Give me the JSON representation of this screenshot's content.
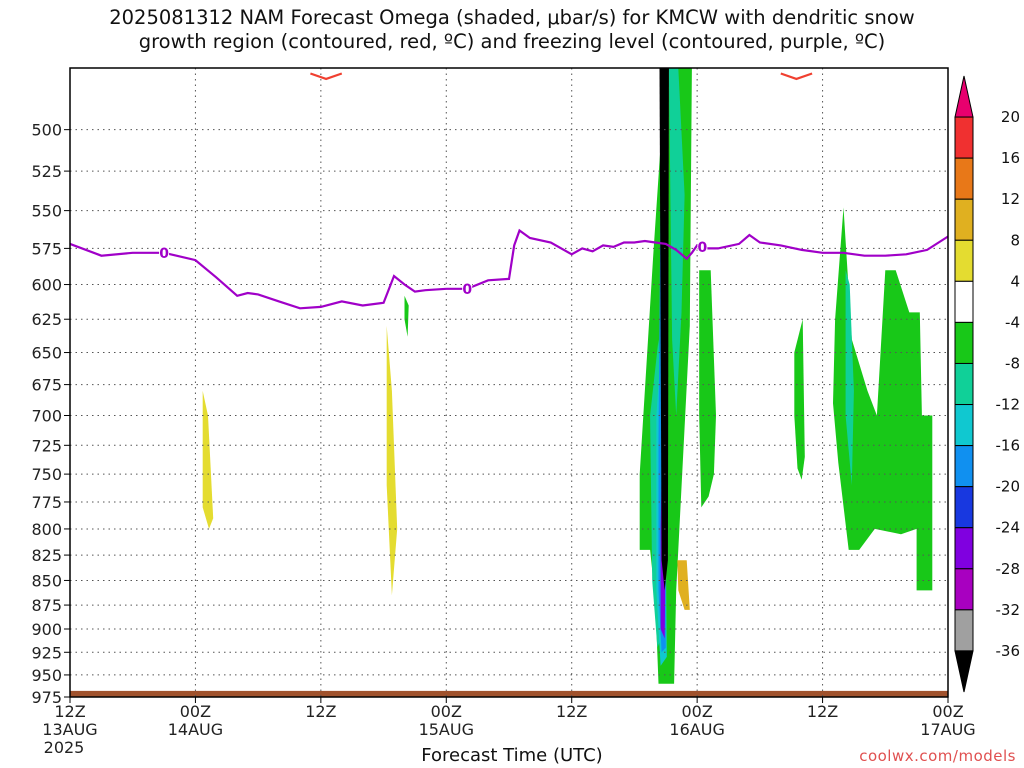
{
  "title": {
    "line1": "2025081312 NAM Forecast Omega (shaded, μbar/s) for KMCW with dendritic snow",
    "line2": "growth region (contoured, red, ºC) and freezing level (contoured, purple, ºC)"
  },
  "xlabel": "Forecast Time (UTC)",
  "credit": "coolwx.com/models",
  "chart_data": {
    "type": "area",
    "title": "2025081312 NAM Forecast Omega (shaded, μbar/s) for KMCW with dendritic snow growth region (contoured, red, ºC) and freezing level (contoured, purple, ºC)",
    "xlabel": "Forecast Time (UTC)",
    "ylabel": "",
    "xlim": [
      0,
      84
    ],
    "ylim": [
      975,
      465
    ],
    "y_scale": "log-pressure",
    "grid": true,
    "x_ticks": [
      {
        "hour": 0,
        "l1": "12Z",
        "l2": "13AUG",
        "l3": "2025"
      },
      {
        "hour": 12,
        "l1": "00Z",
        "l2": "14AUG",
        "l3": ""
      },
      {
        "hour": 24,
        "l1": "12Z",
        "l2": "",
        "l3": ""
      },
      {
        "hour": 36,
        "l1": "00Z",
        "l2": "15AUG",
        "l3": ""
      },
      {
        "hour": 48,
        "l1": "12Z",
        "l2": "",
        "l3": ""
      },
      {
        "hour": 60,
        "l1": "00Z",
        "l2": "16AUG",
        "l3": ""
      },
      {
        "hour": 72,
        "l1": "12Z",
        "l2": "",
        "l3": ""
      },
      {
        "hour": 84,
        "l1": "00Z",
        "l2": "17AUG",
        "l3": ""
      }
    ],
    "y_ticks": [
      500,
      525,
      550,
      575,
      600,
      625,
      650,
      675,
      700,
      725,
      750,
      775,
      800,
      825,
      850,
      875,
      900,
      925,
      950,
      975
    ],
    "freezing_level": {
      "name": "freezing level (0 ºC)",
      "label": "0",
      "label_hours": [
        9,
        38,
        60.5
      ],
      "color": "#a000c8",
      "x": [
        0,
        3,
        6,
        9,
        12,
        14,
        16,
        17,
        18,
        20,
        22,
        24,
        26,
        28,
        30,
        31,
        32,
        33,
        34,
        36,
        38,
        40,
        42,
        42.5,
        43,
        44,
        46,
        48,
        49,
        50,
        51,
        52,
        53,
        54,
        55,
        56,
        57,
        58,
        59,
        59.5,
        60,
        61,
        62,
        64,
        65,
        66,
        68,
        70,
        72,
        74,
        76,
        78,
        80,
        82,
        84
      ],
      "y": [
        572,
        580,
        578,
        578,
        583,
        595,
        608,
        606,
        607,
        612,
        617,
        616,
        612,
        615,
        613,
        594,
        600,
        605,
        604,
        603,
        603,
        597,
        596,
        573,
        563,
        568,
        571,
        579,
        575,
        577,
        573,
        574,
        571,
        571,
        570,
        571,
        572,
        576,
        582,
        578,
        573,
        575,
        575,
        572,
        566,
        571,
        573,
        576,
        578,
        578,
        580,
        580,
        579,
        576,
        567
      ]
    },
    "dendritic_growth_region": {
      "name": "dendritic snow growth region",
      "color": "#f04030",
      "segments": [
        {
          "x": [
            23,
            24.5,
            26
          ],
          "y": [
            468,
            471,
            468
          ]
        },
        {
          "x": [
            68,
            69.5,
            71
          ],
          "y": [
            468,
            471,
            468
          ]
        }
      ]
    },
    "omega_levels": [
      20,
      16,
      12,
      8,
      4,
      -4,
      -8,
      -12,
      -16,
      -20,
      -24,
      -28,
      -32,
      -36
    ],
    "omega_colors": [
      "#e8006e",
      "#f03030",
      "#e87818",
      "#e0b020",
      "#e4dc30",
      "#ffffff",
      "#18c818",
      "#10d098",
      "#10c8d0",
      "#1090f0",
      "#1838e0",
      "#8000e0",
      "#a800c0",
      "#a0a0a0",
      "#000000"
    ],
    "omega_regions": [
      {
        "level": 4,
        "color": "#e4dc30",
        "x": [
          12.7,
          13.2,
          13.7,
          13.3,
          12.7
        ],
        "y": [
          680,
          700,
          790,
          800,
          780
        ]
      },
      {
        "level": 4,
        "color": "#e4dc30",
        "x": [
          30.3,
          30.8,
          31.3,
          30.8,
          30.3
        ],
        "y": [
          630,
          680,
          800,
          865,
          760
        ]
      },
      {
        "level": -4,
        "color": "#18c818",
        "x": [
          32.0,
          32.4,
          32.3,
          32.0
        ],
        "y": [
          608,
          615,
          638,
          625
        ]
      },
      {
        "level": -4,
        "color": "#18c818",
        "x": [
          54.5,
          55.8,
          57.0,
          57.5,
          58.5,
          59.5,
          59.3,
          58.0,
          57.8,
          56.3,
          56.0,
          55.5,
          54.5
        ],
        "y": [
          750,
          580,
          465,
          465,
          465,
          465,
          630,
          860,
          960,
          960,
          870,
          820,
          820
        ]
      },
      {
        "level": -4,
        "color": "#18c818",
        "x": [
          60.2,
          61.3,
          61.8,
          61.6,
          61.1,
          60.4,
          60.2
        ],
        "y": [
          590,
          590,
          700,
          750,
          770,
          780,
          700
        ]
      },
      {
        "level": -4,
        "color": "#18c818",
        "x": [
          69.3,
          70.1,
          70.3,
          70.0,
          69.6,
          69.3
        ],
        "y": [
          650,
          625,
          735,
          755,
          745,
          700
        ]
      },
      {
        "level": -4,
        "color": "#18c818",
        "x": [
          73.2,
          74.0,
          74.8,
          76.3,
          77.2,
          78.0,
          79.0,
          80.3,
          81.3,
          81.5,
          82.5,
          82.5,
          81.0,
          81.0,
          79.5,
          77.0,
          75.5,
          74.5,
          73.5,
          73.0
        ],
        "y": [
          625,
          548,
          640,
          680,
          700,
          590,
          590,
          620,
          620,
          700,
          700,
          860,
          860,
          800,
          805,
          800,
          820,
          820,
          740,
          690
        ]
      },
      {
        "level": 8,
        "color": "#e0b020",
        "x": [
          58.1,
          59.0,
          59.3,
          58.8,
          58.2
        ],
        "y": [
          830,
          830,
          880,
          880,
          860
        ]
      },
      {
        "level": -8,
        "color": "#10d098",
        "x": [
          55.5,
          56.3,
          56.8,
          56.9,
          56.2,
          55.7
        ],
        "y": [
          700,
          640,
          700,
          900,
          920,
          850
        ]
      },
      {
        "level": -8,
        "color": "#10d098",
        "x": [
          57.3,
          58.2,
          58.8,
          58.5,
          58.0,
          57.6
        ],
        "y": [
          465,
          465,
          540,
          620,
          700,
          640
        ]
      },
      {
        "level": -8,
        "color": "#10d098",
        "x": [
          74.2,
          74.6,
          75.0,
          74.8,
          74.2
        ],
        "y": [
          590,
          600,
          680,
          760,
          700
        ]
      },
      {
        "level": -12,
        "color": "#10c8d0",
        "x": [
          56.1,
          56.5,
          56.9,
          57.1,
          56.5,
          56.1
        ],
        "y": [
          700,
          650,
          700,
          930,
          940,
          860
        ]
      },
      {
        "level": -16,
        "color": "#1090f0",
        "x": [
          56.3,
          56.6,
          56.9,
          57.0,
          56.6,
          56.3
        ],
        "y": [
          720,
          465,
          465,
          920,
          925,
          860
        ]
      },
      {
        "level": -24,
        "color": "#8000e0",
        "x": [
          56.5,
          56.7,
          57.0,
          56.9,
          56.5
        ],
        "y": [
          800,
          700,
          800,
          910,
          900
        ]
      },
      {
        "level": -36,
        "color": "#000000",
        "x": [
          56.4,
          57.3,
          57.2,
          56.9,
          56.6
        ],
        "y": [
          465,
          465,
          830,
          860,
          830
        ]
      }
    ],
    "terrain": {
      "color": "#a0522d",
      "top_hpa": 968
    }
  }
}
